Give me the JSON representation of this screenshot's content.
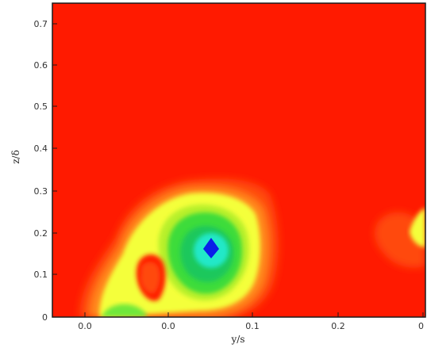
{
  "chart_data": {
    "type": "heatmap",
    "title": "",
    "xlabel": "y/s",
    "ylabel": "z/δ",
    "x_ticks": [
      "0.0",
      "0.0",
      "0.1",
      "0.2",
      "0"
    ],
    "y_ticks": [
      "0",
      "0.1",
      "0.2",
      "0.3",
      "0.4",
      "0.5",
      "0.6",
      "0.7"
    ],
    "grid": false,
    "legend": "none",
    "colors": {
      "background": "#ff1a00",
      "orange_red": "#ff4a10",
      "orange": "#ff8a1c",
      "yellow": "#f4ff3a",
      "yellow_green": "#b8f02c",
      "green": "#3cdc3a",
      "green_mid": "#1fc85c",
      "cyan": "#22e8c8",
      "blue": "#0a1fe8"
    }
  }
}
